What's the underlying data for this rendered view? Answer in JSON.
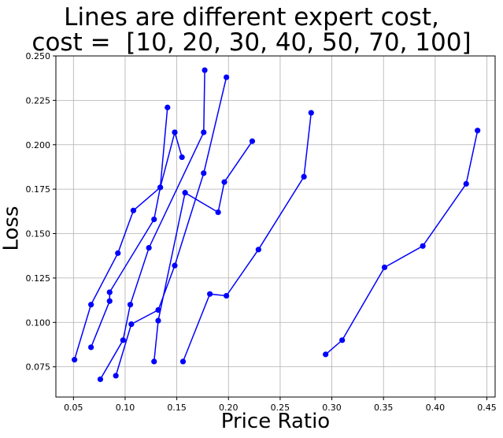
{
  "chart_data": {
    "type": "line",
    "title_line1": "Lines are different expert cost,",
    "title_line2": "cost =  [10, 20, 30, 40, 50, 70, 100]",
    "xlabel": "Price Ratio",
    "ylabel": "Loss",
    "xlim": [
      0.033,
      0.458
    ],
    "ylim": [
      0.058,
      0.25
    ],
    "xticks": [
      "0.05",
      "0.10",
      "0.15",
      "0.20",
      "0.25",
      "0.30",
      "0.35",
      "0.40",
      "0.45"
    ],
    "xtick_values": [
      0.05,
      0.1,
      0.15,
      0.2,
      0.25,
      0.3,
      0.35,
      0.4,
      0.45
    ],
    "yticks": [
      "0.075",
      "0.100",
      "0.125",
      "0.150",
      "0.175",
      "0.200",
      "0.225",
      "0.250"
    ],
    "ytick_values": [
      0.075,
      0.1,
      0.125,
      0.15,
      0.175,
      0.2,
      0.225,
      0.25
    ],
    "grid": true,
    "color": "#0000ff",
    "series": [
      {
        "points": [
          [
            0.051,
            0.079
          ],
          [
            0.067,
            0.11
          ],
          [
            0.093,
            0.139
          ],
          [
            0.108,
            0.163
          ],
          [
            0.134,
            0.176
          ],
          [
            0.141,
            0.221
          ]
        ]
      },
      {
        "points": [
          [
            0.067,
            0.086
          ],
          [
            0.085,
            0.112
          ],
          [
            0.085,
            0.117
          ],
          [
            0.128,
            0.158
          ],
          [
            0.134,
            0.176
          ],
          [
            0.148,
            0.207
          ],
          [
            0.155,
            0.193
          ]
        ]
      },
      {
        "points": [
          [
            0.076,
            0.068
          ],
          [
            0.098,
            0.09
          ],
          [
            0.105,
            0.11
          ],
          [
            0.123,
            0.142
          ],
          [
            0.176,
            0.207
          ],
          [
            0.177,
            0.242
          ]
        ]
      },
      {
        "points": [
          [
            0.091,
            0.07
          ],
          [
            0.106,
            0.099
          ],
          [
            0.132,
            0.107
          ],
          [
            0.148,
            0.132
          ],
          [
            0.176,
            0.184
          ],
          [
            0.198,
            0.238
          ]
        ]
      },
      {
        "points": [
          [
            0.128,
            0.078
          ],
          [
            0.132,
            0.101
          ],
          [
            0.158,
            0.173
          ],
          [
            0.19,
            0.162
          ],
          [
            0.196,
            0.179
          ],
          [
            0.223,
            0.202
          ]
        ]
      },
      {
        "points": [
          [
            0.156,
            0.078
          ],
          [
            0.182,
            0.116
          ],
          [
            0.198,
            0.115
          ],
          [
            0.229,
            0.141
          ],
          [
            0.273,
            0.182
          ],
          [
            0.28,
            0.218
          ]
        ]
      },
      {
        "points": [
          [
            0.294,
            0.082
          ],
          [
            0.31,
            0.09
          ],
          [
            0.351,
            0.131
          ],
          [
            0.388,
            0.143
          ],
          [
            0.43,
            0.178
          ],
          [
            0.441,
            0.208
          ]
        ]
      }
    ]
  }
}
